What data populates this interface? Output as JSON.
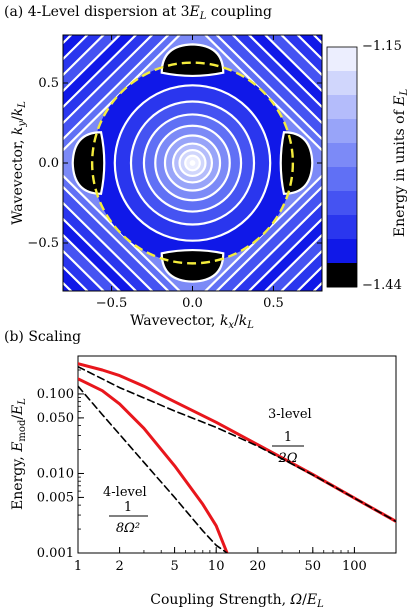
{
  "chart_data": [
    {
      "type": "heatmap",
      "panel": "(a)",
      "title": "4-Level dispersion at 3E_L coupling",
      "title_prefix": "(a) 4-Level dispersion at 3",
      "title_var": "E",
      "title_sub": "L",
      "title_suffix": " coupling",
      "xlabel": "Wavevector, kx/kL",
      "xlabel_text": "Wavevector, ",
      "ylabel": "Wavevector, ky/kL",
      "ylabel_text": "Wavevector, ",
      "xlim": [
        -0.8,
        0.8
      ],
      "ylim": [
        -0.8,
        0.8
      ],
      "xticks": [
        "−0.5",
        "0.0",
        "0.5"
      ],
      "xtick_values": [
        -0.5,
        0.0,
        0.5
      ],
      "yticks": [
        "0.5",
        "0.0",
        "−0.5"
      ],
      "ytick_values": [
        0.5,
        0.0,
        -0.5
      ],
      "colorbar": {
        "label": "Energy in units of E_L",
        "label_text": "Energy in units of ",
        "max_label": "−1.15",
        "min_label": "−1.44",
        "max": -1.15,
        "min": -1.44,
        "levels": 10
      },
      "dashed_circle_color": "#f4ec3c",
      "contour_color": "#ffffff",
      "colormap_colors": [
        "#000000",
        "#1018e8",
        "#2a36ee",
        "#4553f2",
        "#6070f5",
        "#7c8af7",
        "#98a4f9",
        "#b4bcfb",
        "#d0d6fc",
        "#eceefe"
      ]
    },
    {
      "type": "line",
      "panel": "(b)",
      "title": "(b) Scaling",
      "xlabel": "Coupling Strength, Ω/E_L",
      "ylabel": "Energy, E_mod/E_L",
      "xscale": "log",
      "yscale": "log",
      "xlim": [
        1,
        200
      ],
      "ylim": [
        0.001,
        0.3
      ],
      "xticks": [
        "1",
        "2",
        "5",
        "10",
        "20",
        "50",
        "100"
      ],
      "xtick_values": [
        1,
        2,
        5,
        10,
        20,
        50,
        100
      ],
      "yticks": [
        "0.100",
        "0.050",
        "0.010",
        "0.005",
        "0.001"
      ],
      "ytick_values": [
        0.1,
        0.05,
        0.01,
        0.005,
        0.001
      ],
      "series": [
        {
          "style": "solid",
          "color": "#e8161c",
          "x": [
            1,
            1.5,
            2,
            3,
            5,
            10,
            20,
            50,
            100,
            200
          ],
          "y": [
            0.24,
            0.2,
            0.17,
            0.125,
            0.08,
            0.044,
            0.023,
            0.0097,
            0.0049,
            0.0025
          ]
        },
        {
          "style": "dashed",
          "color": "#000000",
          "x": [
            1,
            2,
            5,
            10,
            20,
            50,
            100,
            200
          ],
          "y": [
            0.22,
            0.12,
            0.061,
            0.038,
            0.022,
            0.0096,
            0.0049,
            0.0025
          ]
        },
        {
          "style": "solid",
          "color": "#e8161c",
          "x": [
            1,
            1.5,
            2,
            3,
            5,
            8,
            10,
            12
          ],
          "y": [
            0.155,
            0.11,
            0.075,
            0.037,
            0.0125,
            0.0041,
            0.0022,
            0.001
          ]
        },
        {
          "style": "dashed",
          "color": "#000000",
          "x": [
            1,
            1.5,
            2,
            3,
            5,
            8,
            10,
            12
          ],
          "y": [
            0.125,
            0.055,
            0.031,
            0.0138,
            0.005,
            0.0019,
            0.00125,
            0.001
          ]
        }
      ],
      "annotations": {
        "three_level": {
          "label": "3-level",
          "num": "1",
          "den": "2Ω"
        },
        "four_level": {
          "label": "4-level",
          "num": "1",
          "den": "8Ω²"
        }
      }
    }
  ]
}
